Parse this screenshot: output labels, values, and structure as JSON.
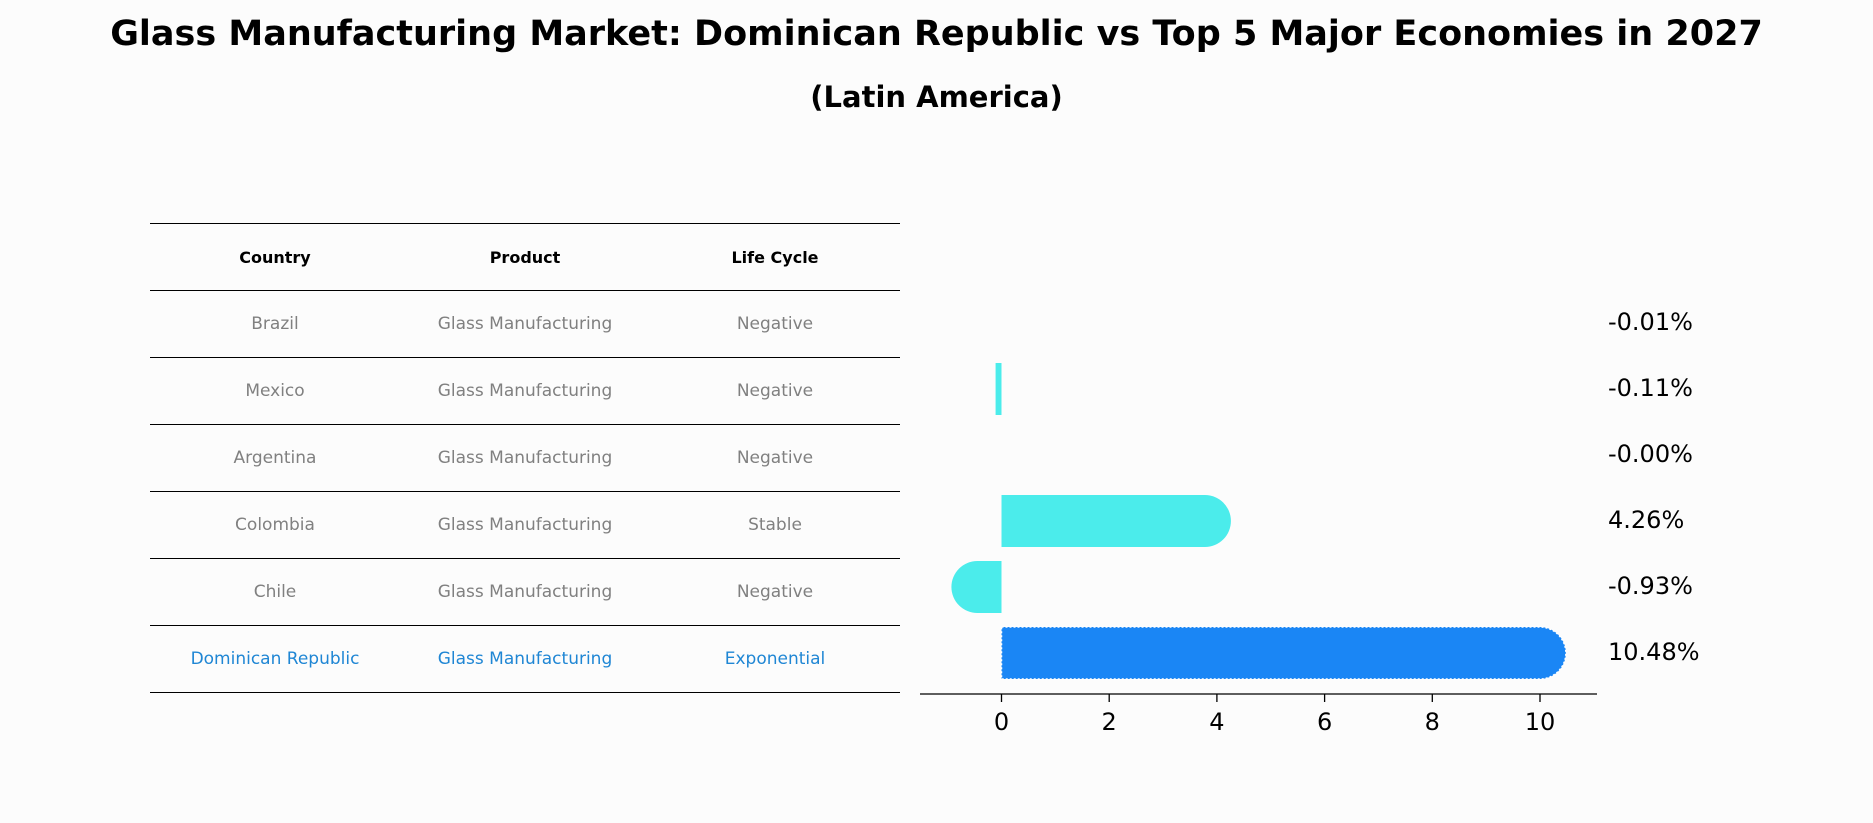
{
  "title": "Glass Manufacturing Market: Dominican Republic vs Top 5 Major Economies in 2027",
  "subtitle": "(Latin America)",
  "table": {
    "headers": [
      "Country",
      "Product",
      "Life Cycle"
    ],
    "rows": [
      {
        "country": "Brazil",
        "product": "Glass Manufacturing",
        "life_cycle": "Negative"
      },
      {
        "country": "Mexico",
        "product": "Glass Manufacturing",
        "life_cycle": "Negative"
      },
      {
        "country": "Argentina",
        "product": "Glass Manufacturing",
        "life_cycle": "Negative"
      },
      {
        "country": "Colombia",
        "product": "Glass Manufacturing",
        "life_cycle": "Stable"
      },
      {
        "country": "Chile",
        "product": "Glass Manufacturing",
        "life_cycle": "Negative"
      },
      {
        "country": "Dominican Republic",
        "product": "Glass Manufacturing",
        "life_cycle": "Exponential"
      }
    ]
  },
  "colors": {
    "highlight_bar": "#1a86f5",
    "other_bar": "#4beceb",
    "highlight_text": "#1f86d4",
    "row_text": "#808080"
  },
  "chart_data": {
    "type": "bar",
    "orientation": "horizontal",
    "categories": [
      "Brazil",
      "Mexico",
      "Argentina",
      "Colombia",
      "Chile",
      "Dominican Republic"
    ],
    "values": [
      -0.01,
      -0.11,
      -0.0,
      4.26,
      -0.93,
      10.48
    ],
    "value_labels": [
      "-0.01%",
      "-0.11%",
      "-0.00%",
      "4.26%",
      "-0.93%",
      "10.48%"
    ],
    "highlight": "Dominican Republic",
    "xlim": [
      -1.5,
      11
    ],
    "xticks": [
      0,
      2,
      4,
      6,
      8,
      10
    ],
    "xlabel": "",
    "ylabel": "",
    "grid": false,
    "legend": "none"
  }
}
